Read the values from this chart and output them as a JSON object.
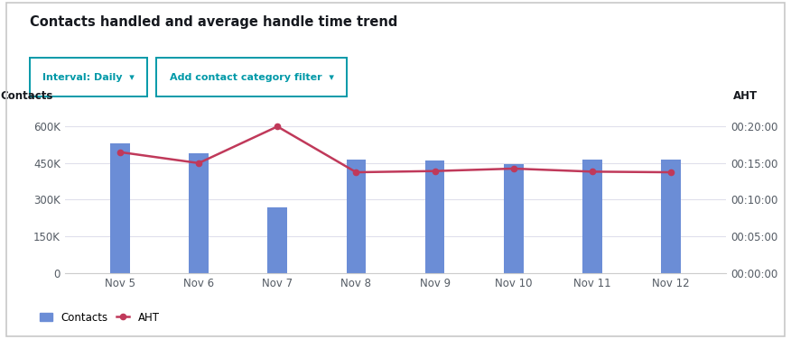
{
  "title": "Contacts handled and average handle time trend",
  "ylabel_left": "Contacts",
  "ylabel_right": "AHT",
  "categories": [
    "Nov 5",
    "Nov 6",
    "Nov 7",
    "Nov 8",
    "Nov 9",
    "Nov 10",
    "Nov 11",
    "Nov 12"
  ],
  "contacts": [
    530000,
    490000,
    270000,
    465000,
    460000,
    445000,
    465000,
    465000
  ],
  "aht_seconds": [
    990,
    900,
    1200,
    825,
    835,
    855,
    830,
    825
  ],
  "bar_color": "#6B8DD6",
  "line_color": "#C0395A",
  "background_color": "#FFFFFF",
  "panel_background": "#F9F9FB",
  "ylim_left": [
    0,
    660000
  ],
  "ylim_right": [
    0,
    1320
  ],
  "yticks_left": [
    0,
    150000,
    300000,
    450000,
    600000
  ],
  "yticks_right": [
    0,
    300,
    600,
    900,
    1200
  ],
  "ytick_labels_right": [
    "00:00:00",
    "00:05:00",
    "00:10:00",
    "00:15:00",
    "00:20:00"
  ],
  "ytick_labels_left": [
    "0",
    "150K",
    "300K",
    "450K",
    "600K"
  ],
  "legend_bar_label": "Contacts",
  "legend_line_label": "AHT",
  "grid_color": "#E0E0EC",
  "button1_text": "Interval: Daily  ▾",
  "button2_text": "Add contact category filter  ▾",
  "button_color": "#0099A8",
  "title_color": "#16191f",
  "tick_color": "#545B64",
  "figwidth": 8.76,
  "figheight": 3.76
}
